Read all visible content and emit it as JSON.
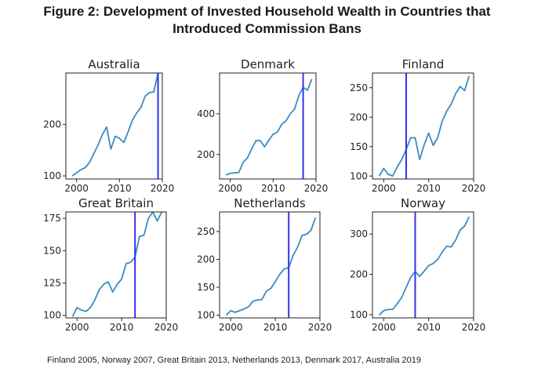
{
  "figure": {
    "title_line1": "Figure 2: Development of Invested Household Wealth in Countries that",
    "title_line2": "Introduced Commission Bans",
    "note": "Finland 2005, Norway 2007, Great Britain 2013, Netherlands 2013, Denmark 2017, Australia 2019"
  },
  "colors": {
    "series": "#3b8bc2",
    "ban_line": "#3333ee",
    "axes": "#222222"
  },
  "chart_data": [
    {
      "type": "line",
      "title": "Australia",
      "x": [
        1999,
        2000,
        2001,
        2002,
        2003,
        2004,
        2005,
        2006,
        2007,
        2008,
        2009,
        2010,
        2011,
        2012,
        2013,
        2014,
        2015,
        2016,
        2017,
        2018,
        2019
      ],
      "values": [
        100,
        106,
        112,
        116,
        126,
        143,
        160,
        180,
        195,
        152,
        177,
        173,
        165,
        185,
        208,
        222,
        233,
        255,
        262,
        263,
        300
      ],
      "ban_year": 2019,
      "xlim": [
        1997.5,
        2020
      ],
      "ylim": [
        94,
        300
      ],
      "xticks": [
        2000,
        2010,
        2020
      ],
      "yticks": [
        100,
        200
      ]
    },
    {
      "type": "line",
      "title": "Denmark",
      "x": [
        1999,
        2000,
        2001,
        2002,
        2003,
        2004,
        2005,
        2006,
        2007,
        2008,
        2009,
        2010,
        2011,
        2012,
        2013,
        2014,
        2015,
        2016,
        2017,
        2018,
        2019
      ],
      "values": [
        100,
        108,
        110,
        112,
        162,
        183,
        228,
        268,
        268,
        238,
        270,
        300,
        310,
        348,
        365,
        400,
        423,
        490,
        530,
        515,
        570
      ],
      "ban_year": 2017,
      "xlim": [
        1997.5,
        2020
      ],
      "ylim": [
        80,
        600
      ],
      "xticks": [
        2000,
        2010,
        2020
      ],
      "yticks": [
        200,
        400
      ]
    },
    {
      "type": "line",
      "title": "Finland",
      "x": [
        1999,
        2000,
        2001,
        2002,
        2003,
        2004,
        2005,
        2006,
        2007,
        2008,
        2009,
        2010,
        2011,
        2012,
        2013,
        2014,
        2015,
        2016,
        2017,
        2018,
        2019
      ],
      "values": [
        100,
        113,
        103,
        100,
        115,
        128,
        145,
        165,
        165,
        128,
        153,
        173,
        152,
        165,
        193,
        210,
        222,
        240,
        252,
        245,
        270
      ],
      "ban_year": 2005,
      "xlim": [
        1997.5,
        2020
      ],
      "ylim": [
        95,
        275
      ],
      "xticks": [
        2000,
        2010,
        2020
      ],
      "yticks": [
        100,
        150,
        200,
        250
      ]
    },
    {
      "type": "line",
      "title": "Great Britain",
      "x": [
        1999,
        2000,
        2001,
        2002,
        2003,
        2004,
        2005,
        2006,
        2007,
        2008,
        2009,
        2010,
        2011,
        2012,
        2013,
        2014,
        2015,
        2016,
        2017,
        2018,
        2019
      ],
      "values": [
        99,
        106,
        104,
        103,
        106,
        112,
        120,
        124,
        126,
        118,
        124,
        128,
        140,
        141,
        145,
        161,
        162,
        175,
        180,
        173,
        180
      ],
      "ban_year": 2013,
      "xlim": [
        1997.5,
        2020
      ],
      "ylim": [
        98,
        180
      ],
      "xticks": [
        2000,
        2010,
        2020
      ],
      "yticks": [
        100,
        125,
        150,
        175
      ]
    },
    {
      "type": "line",
      "title": "Netherlands",
      "x": [
        1999,
        2000,
        2001,
        2002,
        2003,
        2004,
        2005,
        2006,
        2007,
        2008,
        2009,
        2010,
        2011,
        2012,
        2013,
        2014,
        2015,
        2016,
        2017,
        2018,
        2019
      ],
      "values": [
        100,
        108,
        105,
        108,
        111,
        115,
        125,
        127,
        128,
        143,
        148,
        160,
        173,
        183,
        185,
        207,
        222,
        243,
        245,
        252,
        275
      ],
      "ban_year": 2013,
      "xlim": [
        1997.5,
        2020
      ],
      "ylim": [
        95,
        285
      ],
      "xticks": [
        2000,
        2010,
        2020
      ],
      "yticks": [
        100,
        150,
        200,
        250
      ]
    },
    {
      "type": "line",
      "title": "Norway",
      "x": [
        1999,
        2000,
        2001,
        2002,
        2003,
        2004,
        2005,
        2006,
        2007,
        2008,
        2009,
        2010,
        2011,
        2012,
        2013,
        2014,
        2015,
        2016,
        2017,
        2018,
        2019
      ],
      "values": [
        99,
        110,
        113,
        113,
        127,
        143,
        168,
        193,
        207,
        195,
        208,
        222,
        227,
        237,
        255,
        270,
        268,
        285,
        310,
        320,
        343
      ],
      "ban_year": 2007,
      "xlim": [
        1997.5,
        2020
      ],
      "ylim": [
        92,
        355
      ],
      "xticks": [
        2000,
        2010,
        2020
      ],
      "yticks": [
        100,
        200,
        300
      ]
    }
  ]
}
